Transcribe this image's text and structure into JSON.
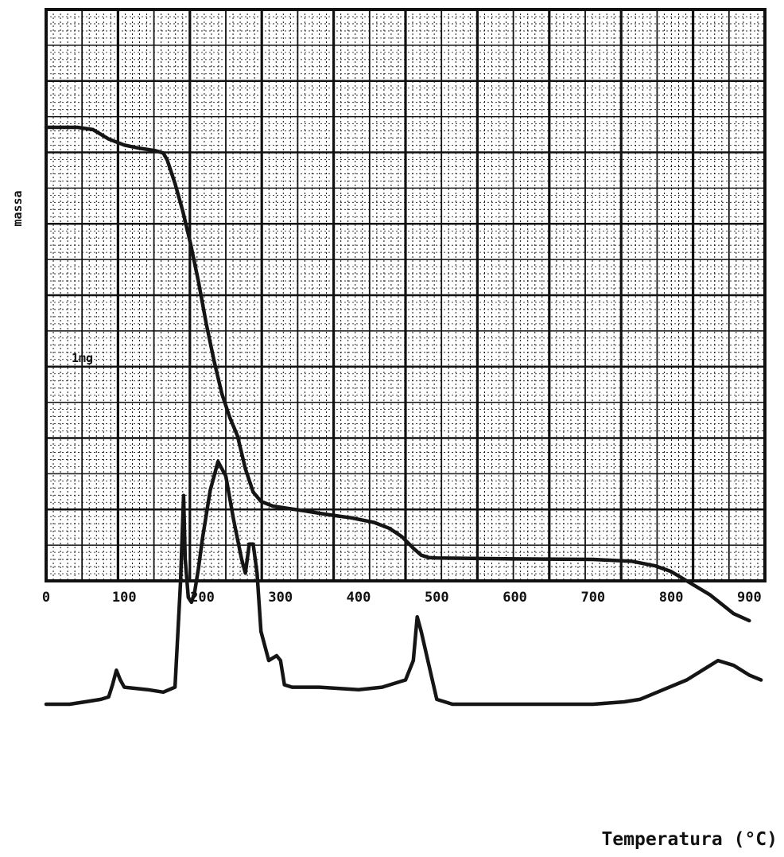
{
  "chart_data": {
    "type": "line",
    "xlabel": "Temperatura (°C)",
    "ylabel": "massa",
    "annotation": "1mg",
    "xlim": [
      0,
      920
    ],
    "x_ticks": [
      "0",
      "100",
      "200",
      "300",
      "400",
      "500",
      "600",
      "700",
      "800",
      "900"
    ],
    "grid": true,
    "series": [
      {
        "points": [
          [
            0,
            1.0
          ],
          [
            40,
            1.0
          ],
          [
            60,
            0.995
          ],
          [
            80,
            0.975
          ],
          [
            100,
            0.962
          ],
          [
            120,
            0.955
          ],
          [
            140,
            0.95
          ],
          [
            150,
            0.945
          ],
          [
            155,
            0.93
          ],
          [
            165,
            0.88
          ],
          [
            175,
            0.82
          ],
          [
            185,
            0.75
          ],
          [
            195,
            0.67
          ],
          [
            205,
            0.58
          ],
          [
            215,
            0.5
          ],
          [
            225,
            0.43
          ],
          [
            235,
            0.38
          ],
          [
            245,
            0.34
          ],
          [
            255,
            0.27
          ],
          [
            265,
            0.22
          ],
          [
            275,
            0.2
          ],
          [
            290,
            0.19
          ],
          [
            310,
            0.185
          ],
          [
            330,
            0.18
          ],
          [
            360,
            0.172
          ],
          [
            390,
            0.165
          ],
          [
            420,
            0.155
          ],
          [
            440,
            0.142
          ],
          [
            455,
            0.125
          ],
          [
            470,
            0.1
          ],
          [
            480,
            0.085
          ],
          [
            490,
            0.08
          ],
          [
            500,
            0.079
          ],
          [
            600,
            0.077
          ],
          [
            700,
            0.076
          ],
          [
            750,
            0.072
          ],
          [
            780,
            0.062
          ],
          [
            800,
            0.05
          ],
          [
            820,
            0.03
          ],
          [
            850,
            0.0
          ],
          [
            880,
            -0.04
          ],
          [
            900,
            -0.055
          ]
        ]
      },
      {
        "points": [
          [
            0,
            0.0
          ],
          [
            30,
            0.0
          ],
          [
            50,
            0.005
          ],
          [
            70,
            0.01
          ],
          [
            80,
            0.015
          ],
          [
            85,
            0.04
          ],
          [
            90,
            0.07
          ],
          [
            95,
            0.05
          ],
          [
            100,
            0.035
          ],
          [
            130,
            0.03
          ],
          [
            150,
            0.025
          ],
          [
            165,
            0.035
          ],
          [
            172,
            0.25
          ],
          [
            176,
            0.43
          ],
          [
            178,
            0.3
          ],
          [
            182,
            0.22
          ],
          [
            186,
            0.21
          ],
          [
            190,
            0.23
          ],
          [
            195,
            0.28
          ],
          [
            200,
            0.34
          ],
          [
            210,
            0.44
          ],
          [
            220,
            0.5
          ],
          [
            230,
            0.47
          ],
          [
            240,
            0.38
          ],
          [
            250,
            0.3
          ],
          [
            255,
            0.27
          ],
          [
            260,
            0.33
          ],
          [
            265,
            0.33
          ],
          [
            270,
            0.27
          ],
          [
            275,
            0.15
          ],
          [
            285,
            0.09
          ],
          [
            295,
            0.1
          ],
          [
            300,
            0.09
          ],
          [
            305,
            0.04
          ],
          [
            315,
            0.035
          ],
          [
            350,
            0.035
          ],
          [
            400,
            0.03
          ],
          [
            430,
            0.035
          ],
          [
            460,
            0.05
          ],
          [
            470,
            0.09
          ],
          [
            475,
            0.18
          ],
          [
            480,
            0.15
          ],
          [
            490,
            0.08
          ],
          [
            500,
            0.01
          ],
          [
            520,
            0.0
          ],
          [
            600,
            0.0
          ],
          [
            640,
            0.0
          ],
          [
            700,
            0.0
          ],
          [
            740,
            0.005
          ],
          [
            760,
            0.01
          ],
          [
            790,
            0.03
          ],
          [
            820,
            0.05
          ],
          [
            850,
            0.08
          ],
          [
            860,
            0.09
          ],
          [
            880,
            0.08
          ],
          [
            900,
            0.06
          ],
          [
            915,
            0.05
          ]
        ]
      }
    ]
  }
}
